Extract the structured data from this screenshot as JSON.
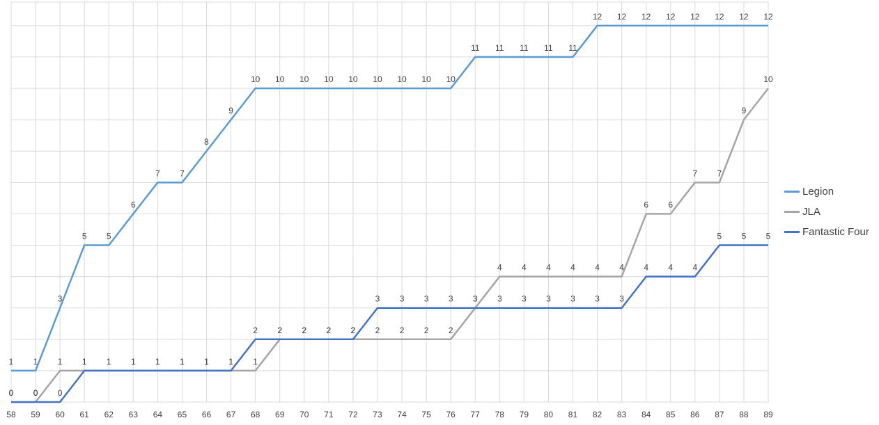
{
  "chart_data": {
    "type": "line",
    "title": "",
    "xlabel": "",
    "ylabel": "",
    "x": [
      "58",
      "59",
      "60",
      "61",
      "62",
      "63",
      "64",
      "65",
      "66",
      "67",
      "68",
      "69",
      "70",
      "71",
      "72",
      "73",
      "74",
      "75",
      "76",
      "77",
      "78",
      "79",
      "80",
      "81",
      "82",
      "83",
      "84",
      "85",
      "86",
      "87",
      "88",
      "89"
    ],
    "ylim": [
      0,
      12.75
    ],
    "grid": true,
    "legend_position": "right",
    "series": [
      {
        "name": "Legion",
        "color": "#5B9BD5",
        "values": [
          1,
          1,
          3,
          5,
          5,
          6,
          7,
          7,
          8,
          9,
          10,
          10,
          10,
          10,
          10,
          10,
          10,
          10,
          10,
          11,
          11,
          11,
          11,
          11,
          12,
          12,
          12,
          12,
          12,
          12,
          12,
          12
        ]
      },
      {
        "name": "JLA",
        "color": "#A5A5A5",
        "values": [
          0,
          0,
          1,
          1,
          1,
          1,
          1,
          1,
          1,
          1,
          1,
          2,
          2,
          2,
          2,
          2,
          2,
          2,
          2,
          3,
          4,
          4,
          4,
          4,
          4,
          4,
          6,
          6,
          7,
          7,
          9,
          10
        ]
      },
      {
        "name": "Fantastic Four",
        "color": "#4472C4",
        "values": [
          0,
          0,
          0,
          1,
          1,
          1,
          1,
          1,
          1,
          1,
          2,
          2,
          2,
          2,
          2,
          3,
          3,
          3,
          3,
          3,
          3,
          3,
          3,
          3,
          3,
          3,
          4,
          4,
          4,
          5,
          5,
          5
        ]
      }
    ]
  }
}
